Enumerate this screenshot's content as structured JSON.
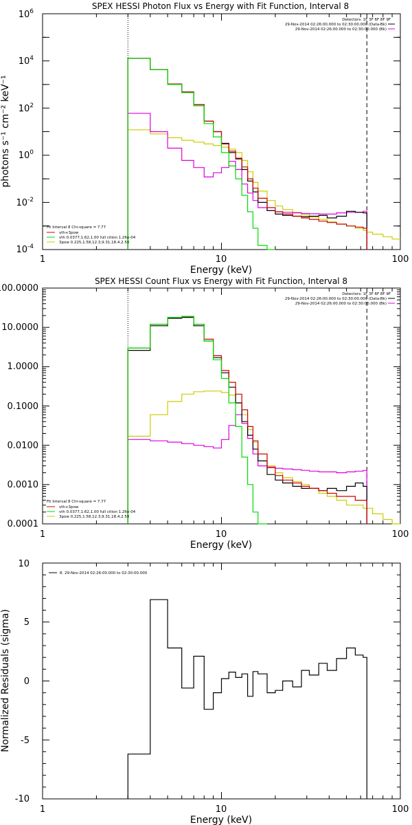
{
  "colors": {
    "total": "#000000",
    "red": "#cc0000",
    "green": "#00dd00",
    "yellow": "#cccc00",
    "magenta": "#dd00dd"
  },
  "chart_data": [
    {
      "type": "line",
      "title": "SPEX HESSI Photon Flux vs Energy with Fit Function, Interval 8",
      "xlabel": "Energy (keV)",
      "ylabel": "photons s⁻¹ cm⁻² keV⁻¹",
      "xscale": "log",
      "yscale": "log",
      "xlim": [
        1,
        100
      ],
      "ylim": [
        0.0001,
        1000000
      ],
      "x_ticks": [
        1,
        10,
        100
      ],
      "x_tick_labels": [
        "1",
        "10",
        "100"
      ],
      "y_ticks": [
        0.0001,
        0.01,
        1,
        100,
        10000,
        1000000
      ],
      "y_tick_labels": [
        {
          "base": "10",
          "exp": "-4"
        },
        {
          "base": "10",
          "exp": "-2"
        },
        {
          "base": "10",
          "exp": "0"
        },
        {
          "base": "10",
          "exp": "2"
        },
        {
          "base": "10",
          "exp": "4"
        },
        {
          "base": "10",
          "exp": "6"
        }
      ],
      "vlines": [
        {
          "x": 3,
          "style": "dotted"
        },
        {
          "x": 65,
          "style": "dashed"
        }
      ],
      "legend_top_right": [
        "Detectors: 1F 3F 6F 8F 9F",
        "29-Nov-2014 02:26:00.000 to 02:30:00.000 (Data-Bk)",
        "29-Nov-2014 02:26:00.000 to 02:30:00.000 (Bk)"
      ],
      "legend_bottom_left": [
        "Fit Interval 8    Chi-square = 7.77",
        "vth+3pow",
        "vth 0.0377,1.62,1.00  full cition 1.26e-04",
        "3pow 0.225,1.58,12.3,9.31,18.4,2.50"
      ],
      "x_edges": [
        3,
        4,
        5,
        6,
        7,
        8,
        9,
        10,
        11,
        12,
        13,
        14,
        15,
        16,
        18,
        20,
        22,
        25,
        28,
        31,
        35,
        39,
        44,
        50,
        56,
        62,
        65,
        70,
        80,
        90,
        100
      ],
      "series": [
        {
          "name": "Data-Bk",
          "values": [
            13000,
            4300,
            1050,
            480,
            140,
            28,
            10,
            3.2,
            1.3,
            0.7,
            0.25,
            0.08,
            0.028,
            0.01,
            0.0045,
            0.0032,
            0.0028,
            0.0026,
            0.0025,
            0.0026,
            0.0028,
            0.0022,
            0.0026,
            0.0042,
            0.0038,
            0.0036,
            null,
            null,
            null,
            null
          ]
        },
        {
          "name": "vth+3pow",
          "values": [
            13000,
            4300,
            1050,
            480,
            140,
            28,
            10,
            3.0,
            1.5,
            0.75,
            0.32,
            0.1,
            0.04,
            0.015,
            0.006,
            0.004,
            0.0032,
            0.0026,
            0.0022,
            0.0019,
            0.0016,
            0.0014,
            0.0012,
            0.001,
            0.0009,
            0.0008,
            null,
            null,
            null,
            null
          ]
        },
        {
          "name": "vth",
          "values": [
            13000,
            4300,
            1000,
            450,
            125,
            22,
            6,
            1.3,
            0.35,
            0.1,
            0.02,
            0.004,
            0.0008,
            0.00015,
            1e-05,
            null,
            null,
            null,
            null,
            null,
            null,
            null,
            null,
            null,
            null,
            null,
            null,
            null,
            null,
            null
          ]
        },
        {
          "name": "3pow",
          "values": [
            12,
            8,
            5.5,
            4.3,
            3.6,
            3.0,
            2.6,
            2.2,
            1.8,
            1.3,
            0.6,
            0.2,
            0.07,
            0.03,
            0.012,
            0.007,
            0.005,
            0.0038,
            0.003,
            0.0024,
            0.0019,
            0.0015,
            0.0012,
            0.001,
            0.0008,
            0.00065,
            0.00055,
            0.00045,
            0.00035,
            0.00028
          ]
        },
        {
          "name": "Bk",
          "values": [
            60,
            10,
            2.0,
            0.6,
            0.3,
            0.12,
            0.18,
            0.3,
            0.55,
            0.25,
            0.06,
            0.025,
            0.012,
            0.006,
            0.0045,
            0.004,
            0.0038,
            0.0036,
            0.0034,
            0.0033,
            0.0032,
            0.0032,
            0.0036,
            0.0038,
            0.0038,
            0.0042,
            null,
            null,
            null,
            null
          ]
        }
      ]
    },
    {
      "type": "line",
      "title": "SPEX HESSI Count Flux vs Energy with Fit Function, Interval 8",
      "xlabel": "Energy (keV)",
      "ylabel": "",
      "xscale": "log",
      "yscale": "log",
      "xlim": [
        1,
        100
      ],
      "ylim": [
        0.0001,
        100
      ],
      "x_ticks": [
        1,
        10,
        100
      ],
      "x_tick_labels": [
        "1",
        "10",
        "100"
      ],
      "y_ticks": [
        0.0001,
        0.001,
        0.01,
        0.1,
        1,
        10,
        100
      ],
      "y_tick_labels": [
        "0.0001",
        "0.0010",
        "0.0100",
        "0.1000",
        "1.0000",
        "10.0000",
        "100.0000"
      ],
      "vlines": [
        {
          "x": 3,
          "style": "dotted"
        },
        {
          "x": 65,
          "style": "dashed"
        }
      ],
      "legend_top_right": [
        "Detectors: 1F 3F 6F 8F 9F",
        "29-Nov-2014 02:26:00.000 to 02:30:00.000 (Data-Bk)",
        "29-Nov-2014 02:26:00.000 to 02:30:00.000 (Bk)"
      ],
      "legend_bottom_left": [
        "Fit Interval 8    Chi-square = 7.77",
        "vth+3pow",
        "vth 0.0377,1.62,1.00  full cition 1.26e-04",
        "3pow 0.225,1.58,12.3,9.31,18.4,2.50"
      ],
      "x_edges": [
        3,
        4,
        5,
        6,
        7,
        8,
        9,
        10,
        11,
        12,
        13,
        14,
        15,
        16,
        18,
        20,
        22,
        25,
        28,
        31,
        35,
        39,
        44,
        50,
        56,
        62,
        65,
        70,
        80,
        90,
        100
      ],
      "series": [
        {
          "name": "Data-Bk",
          "values": [
            2.6,
            11,
            17,
            18,
            11,
            4.5,
            1.7,
            0.7,
            0.3,
            0.12,
            0.04,
            0.018,
            0.008,
            0.004,
            0.0018,
            0.0013,
            0.0011,
            0.0009,
            0.0008,
            0.0008,
            0.0007,
            0.0008,
            0.0007,
            0.0009,
            0.0011,
            0.0009,
            null,
            null,
            null,
            null
          ]
        },
        {
          "name": "vth+3pow",
          "values": [
            3.0,
            12,
            18,
            19,
            12,
            5.0,
            1.9,
            0.8,
            0.4,
            0.2,
            0.08,
            0.03,
            0.013,
            0.006,
            0.0027,
            0.0017,
            0.0013,
            0.0011,
            0.0009,
            0.0008,
            0.0007,
            0.0006,
            0.0005,
            0.0005,
            0.0004,
            0.0004,
            null,
            null,
            null,
            null
          ]
        },
        {
          "name": "vth",
          "values": [
            3.0,
            12,
            18,
            19,
            12,
            4.5,
            1.5,
            0.5,
            0.12,
            0.03,
            0.005,
            0.001,
            0.0002,
            3e-05,
            null,
            null,
            null,
            null,
            null,
            null,
            null,
            null,
            null,
            null,
            null,
            null,
            null,
            null,
            null,
            null
          ]
        },
        {
          "name": "3pow",
          "values": [
            0.017,
            0.06,
            0.13,
            0.2,
            0.23,
            0.24,
            0.24,
            0.22,
            0.19,
            0.12,
            0.06,
            0.025,
            0.012,
            0.006,
            0.003,
            0.002,
            0.0015,
            0.0012,
            0.001,
            0.0008,
            0.0006,
            0.0005,
            0.0004,
            0.0003,
            0.0003,
            0.00025,
            0.00025,
            0.00018,
            0.00013,
            0.0001
          ]
        },
        {
          "name": "Bk",
          "values": [
            0.014,
            0.013,
            0.012,
            0.011,
            0.01,
            0.0092,
            0.0085,
            0.014,
            0.032,
            0.06,
            0.036,
            0.015,
            0.006,
            0.003,
            0.0028,
            0.0026,
            0.0025,
            0.0024,
            0.0023,
            0.0022,
            0.0021,
            0.0021,
            0.002,
            0.0021,
            0.0022,
            0.0023,
            null,
            null,
            null,
            null
          ]
        }
      ]
    },
    {
      "type": "line",
      "title": "",
      "xlabel": "Energy (keV)",
      "ylabel": "Normalized Residuals (sigma)",
      "xscale": "log",
      "yscale": "linear",
      "xlim": [
        1,
        100
      ],
      "ylim": [
        -10,
        10
      ],
      "x_ticks": [
        1,
        10,
        100
      ],
      "x_tick_labels": [
        "1",
        "10",
        "100"
      ],
      "y_ticks": [
        -10,
        -5,
        0,
        5,
        10
      ],
      "y_tick_labels": [
        "-10",
        "-5",
        "0",
        "5",
        "10"
      ],
      "legend_top_left": [
        "8. 29-Nov-2014 02:26:00.000 to 02:30:00.000"
      ],
      "x_edges": [
        3,
        4,
        5,
        6,
        7,
        8,
        9,
        10,
        11,
        12,
        13,
        14,
        15,
        16,
        18,
        20,
        22,
        25,
        28,
        31,
        35,
        39,
        44,
        50,
        56,
        62,
        65
      ],
      "series": [
        {
          "name": "",
          "values": [
            -6.2,
            6.9,
            2.8,
            -0.6,
            2.1,
            -2.4,
            -1.0,
            0.2,
            0.75,
            0.3,
            0.6,
            -1.3,
            0.8,
            0.6,
            -1.0,
            -0.8,
            0.0,
            -0.5,
            0.9,
            0.5,
            1.5,
            0.9,
            1.9,
            2.8,
            2.2,
            2.0
          ]
        }
      ]
    }
  ]
}
